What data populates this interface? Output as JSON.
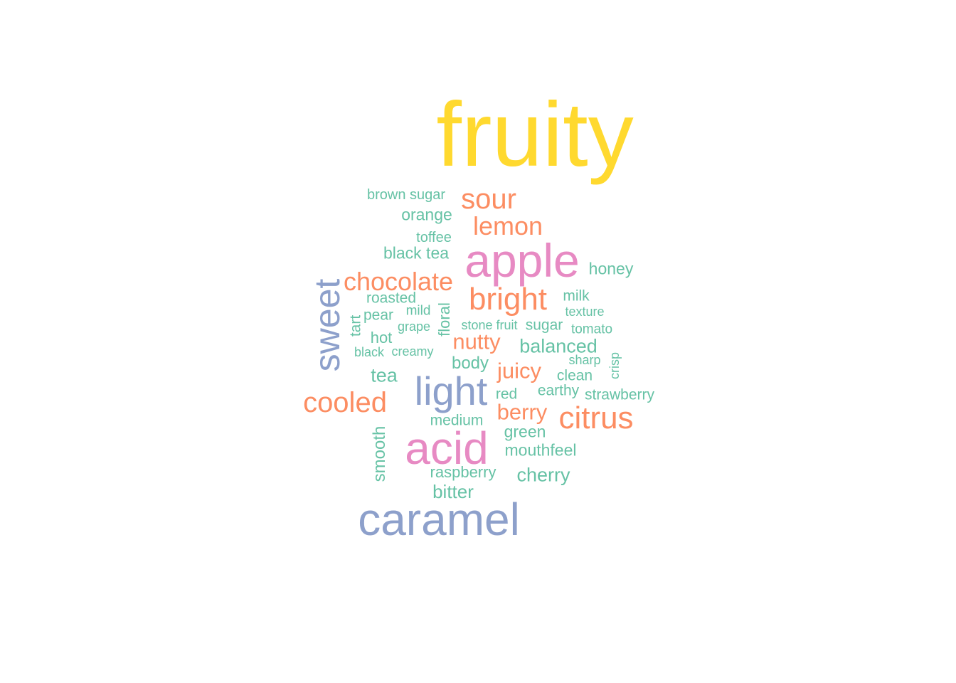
{
  "palette": {
    "yellow": "#FFD92F",
    "pink": "#E78AC3",
    "blue": "#8DA0CB",
    "orange": "#FC8D62",
    "green": "#66C2A5"
  },
  "words": [
    {
      "text": "fruity",
      "color": "#FFD92F"
    },
    {
      "text": "apple",
      "color": "#E78AC3"
    },
    {
      "text": "acid",
      "color": "#E78AC3"
    },
    {
      "text": "caramel",
      "color": "#8DA0CB"
    },
    {
      "text": "light",
      "color": "#8DA0CB"
    },
    {
      "text": "sweet",
      "color": "#8DA0CB"
    },
    {
      "text": "sour",
      "color": "#FC8D62"
    },
    {
      "text": "lemon",
      "color": "#FC8D62"
    },
    {
      "text": "chocolate",
      "color": "#FC8D62"
    },
    {
      "text": "bright",
      "color": "#FC8D62"
    },
    {
      "text": "cooled",
      "color": "#FC8D62"
    },
    {
      "text": "citrus",
      "color": "#FC8D62"
    },
    {
      "text": "nutty",
      "color": "#FC8D62"
    },
    {
      "text": "juicy",
      "color": "#FC8D62"
    },
    {
      "text": "berry",
      "color": "#FC8D62"
    },
    {
      "text": "brown sugar",
      "color": "#66C2A5"
    },
    {
      "text": "orange",
      "color": "#66C2A5"
    },
    {
      "text": "toffee",
      "color": "#66C2A5"
    },
    {
      "text": "black tea",
      "color": "#66C2A5"
    },
    {
      "text": "honey",
      "color": "#66C2A5"
    },
    {
      "text": "roasted",
      "color": "#66C2A5"
    },
    {
      "text": "milk",
      "color": "#66C2A5"
    },
    {
      "text": "pear",
      "color": "#66C2A5"
    },
    {
      "text": "mild",
      "color": "#66C2A5"
    },
    {
      "text": "texture",
      "color": "#66C2A5"
    },
    {
      "text": "floral",
      "color": "#66C2A5"
    },
    {
      "text": "tart",
      "color": "#66C2A5"
    },
    {
      "text": "grape",
      "color": "#66C2A5"
    },
    {
      "text": "stone fruit",
      "color": "#66C2A5"
    },
    {
      "text": "sugar",
      "color": "#66C2A5"
    },
    {
      "text": "tomato",
      "color": "#66C2A5"
    },
    {
      "text": "hot",
      "color": "#66C2A5"
    },
    {
      "text": "balanced",
      "color": "#66C2A5"
    },
    {
      "text": "black",
      "color": "#66C2A5"
    },
    {
      "text": "creamy",
      "color": "#66C2A5"
    },
    {
      "text": "sharp",
      "color": "#66C2A5"
    },
    {
      "text": "crisp",
      "color": "#66C2A5"
    },
    {
      "text": "body",
      "color": "#66C2A5"
    },
    {
      "text": "tea",
      "color": "#66C2A5"
    },
    {
      "text": "clean",
      "color": "#66C2A5"
    },
    {
      "text": "red",
      "color": "#66C2A5"
    },
    {
      "text": "earthy",
      "color": "#66C2A5"
    },
    {
      "text": "strawberry",
      "color": "#66C2A5"
    },
    {
      "text": "medium",
      "color": "#66C2A5"
    },
    {
      "text": "green",
      "color": "#66C2A5"
    },
    {
      "text": "smooth",
      "color": "#66C2A5"
    },
    {
      "text": "mouthfeel",
      "color": "#66C2A5"
    },
    {
      "text": "raspberry",
      "color": "#66C2A5"
    },
    {
      "text": "cherry",
      "color": "#66C2A5"
    },
    {
      "text": "bitter",
      "color": "#66C2A5"
    }
  ]
}
